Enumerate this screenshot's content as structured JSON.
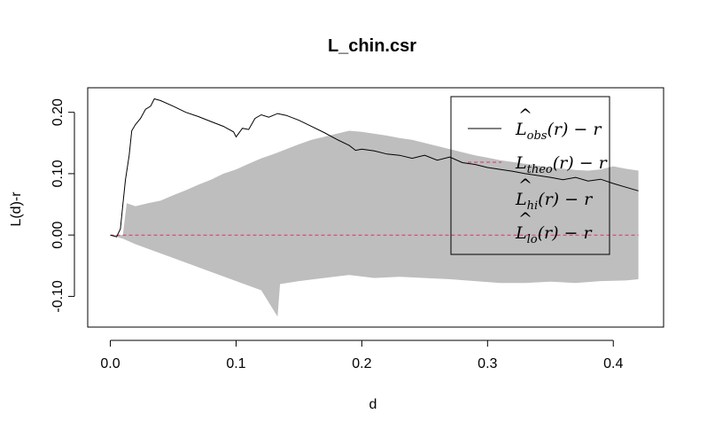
{
  "chart_data": {
    "type": "line",
    "title": "L_chin.csr",
    "xlabel": "d",
    "ylabel": "L(d)-r",
    "xlim": [
      -0.018,
      0.44
    ],
    "ylim": [
      -0.15,
      0.24
    ],
    "xticks": [
      0.0,
      0.1,
      0.2,
      0.3,
      0.4
    ],
    "xtick_labels": [
      "0.0",
      "0.1",
      "0.2",
      "0.3",
      "0.4"
    ],
    "yticks": [
      -0.1,
      0.0,
      0.1,
      0.2
    ],
    "ytick_labels": [
      "-0.10",
      "0.00",
      "0.10",
      "0.20"
    ],
    "legend_position": "top-right",
    "series": [
      {
        "name": "obs",
        "legend_main": "L",
        "legend_sub": "obs",
        "legend_rest": "(r) − r",
        "hat": true,
        "color": "#000000",
        "style": "solid",
        "points": [
          [
            0.0,
            0.0
          ],
          [
            0.005,
            -0.003
          ],
          [
            0.008,
            0.01
          ],
          [
            0.01,
            0.05
          ],
          [
            0.012,
            0.09
          ],
          [
            0.015,
            0.13
          ],
          [
            0.017,
            0.17
          ],
          [
            0.02,
            0.18
          ],
          [
            0.024,
            0.19
          ],
          [
            0.028,
            0.205
          ],
          [
            0.032,
            0.21
          ],
          [
            0.035,
            0.222
          ],
          [
            0.04,
            0.219
          ],
          [
            0.05,
            0.21
          ],
          [
            0.06,
            0.2
          ],
          [
            0.07,
            0.193
          ],
          [
            0.08,
            0.185
          ],
          [
            0.09,
            0.177
          ],
          [
            0.098,
            0.168
          ],
          [
            0.1,
            0.16
          ],
          [
            0.105,
            0.174
          ],
          [
            0.11,
            0.172
          ],
          [
            0.115,
            0.19
          ],
          [
            0.12,
            0.196
          ],
          [
            0.126,
            0.192
          ],
          [
            0.133,
            0.198
          ],
          [
            0.14,
            0.195
          ],
          [
            0.15,
            0.187
          ],
          [
            0.16,
            0.177
          ],
          [
            0.17,
            0.167
          ],
          [
            0.18,
            0.156
          ],
          [
            0.19,
            0.146
          ],
          [
            0.195,
            0.138
          ],
          [
            0.2,
            0.14
          ],
          [
            0.21,
            0.137
          ],
          [
            0.22,
            0.132
          ],
          [
            0.23,
            0.13
          ],
          [
            0.24,
            0.125
          ],
          [
            0.25,
            0.13
          ],
          [
            0.26,
            0.122
          ],
          [
            0.27,
            0.127
          ],
          [
            0.28,
            0.118
          ],
          [
            0.29,
            0.115
          ],
          [
            0.3,
            0.11
          ],
          [
            0.31,
            0.107
          ],
          [
            0.32,
            0.104
          ],
          [
            0.33,
            0.1
          ],
          [
            0.34,
            0.097
          ],
          [
            0.35,
            0.094
          ],
          [
            0.36,
            0.09
          ],
          [
            0.37,
            0.094
          ],
          [
            0.38,
            0.088
          ],
          [
            0.39,
            0.091
          ],
          [
            0.4,
            0.084
          ],
          [
            0.41,
            0.078
          ],
          [
            0.42,
            0.072
          ]
        ]
      },
      {
        "name": "theo",
        "legend_main": "L",
        "legend_sub": "theo",
        "legend_rest": "(r) − r",
        "hat": false,
        "color": "#d6336c",
        "style": "dashed",
        "points": [
          [
            0.0,
            0.0
          ],
          [
            0.42,
            0.0
          ]
        ]
      },
      {
        "name": "hi",
        "legend_main": "L",
        "legend_sub": "hi",
        "legend_rest": "(r) − r",
        "hat": true,
        "color": "#bebebe",
        "style": "band-upper",
        "points": [
          [
            0.0,
            0.0
          ],
          [
            0.01,
            0.0
          ],
          [
            0.013,
            0.052
          ],
          [
            0.02,
            0.047
          ],
          [
            0.03,
            0.052
          ],
          [
            0.04,
            0.056
          ],
          [
            0.05,
            0.065
          ],
          [
            0.06,
            0.073
          ],
          [
            0.07,
            0.082
          ],
          [
            0.08,
            0.09
          ],
          [
            0.09,
            0.1
          ],
          [
            0.1,
            0.107
          ],
          [
            0.11,
            0.116
          ],
          [
            0.12,
            0.125
          ],
          [
            0.13,
            0.132
          ],
          [
            0.14,
            0.14
          ],
          [
            0.15,
            0.148
          ],
          [
            0.16,
            0.155
          ],
          [
            0.17,
            0.16
          ],
          [
            0.18,
            0.165
          ],
          [
            0.19,
            0.17
          ],
          [
            0.2,
            0.168
          ],
          [
            0.21,
            0.165
          ],
          [
            0.22,
            0.162
          ],
          [
            0.23,
            0.158
          ],
          [
            0.24,
            0.155
          ],
          [
            0.25,
            0.15
          ],
          [
            0.26,
            0.145
          ],
          [
            0.27,
            0.14
          ],
          [
            0.28,
            0.135
          ],
          [
            0.29,
            0.13
          ],
          [
            0.3,
            0.126
          ],
          [
            0.31,
            0.122
          ],
          [
            0.32,
            0.119
          ],
          [
            0.33,
            0.116
          ],
          [
            0.34,
            0.113
          ],
          [
            0.35,
            0.11
          ],
          [
            0.36,
            0.108
          ],
          [
            0.37,
            0.106
          ],
          [
            0.38,
            0.105
          ],
          [
            0.39,
            0.107
          ],
          [
            0.4,
            0.112
          ],
          [
            0.41,
            0.108
          ],
          [
            0.42,
            0.105
          ]
        ]
      },
      {
        "name": "lo",
        "legend_main": "L",
        "legend_sub": "lo",
        "legend_rest": "(r) − r",
        "hat": true,
        "color": "#bebebe",
        "style": "band-lower",
        "points": [
          [
            0.0,
            0.0
          ],
          [
            0.01,
            -0.006
          ],
          [
            0.02,
            -0.015
          ],
          [
            0.04,
            -0.03
          ],
          [
            0.06,
            -0.045
          ],
          [
            0.08,
            -0.06
          ],
          [
            0.1,
            -0.075
          ],
          [
            0.12,
            -0.09
          ],
          [
            0.133,
            -0.133
          ],
          [
            0.135,
            -0.08
          ],
          [
            0.15,
            -0.075
          ],
          [
            0.17,
            -0.07
          ],
          [
            0.19,
            -0.065
          ],
          [
            0.21,
            -0.07
          ],
          [
            0.23,
            -0.068
          ],
          [
            0.25,
            -0.07
          ],
          [
            0.27,
            -0.072
          ],
          [
            0.29,
            -0.075
          ],
          [
            0.31,
            -0.078
          ],
          [
            0.33,
            -0.078
          ],
          [
            0.35,
            -0.076
          ],
          [
            0.37,
            -0.078
          ],
          [
            0.39,
            -0.075
          ],
          [
            0.41,
            -0.074
          ],
          [
            0.42,
            -0.072
          ]
        ]
      }
    ]
  }
}
